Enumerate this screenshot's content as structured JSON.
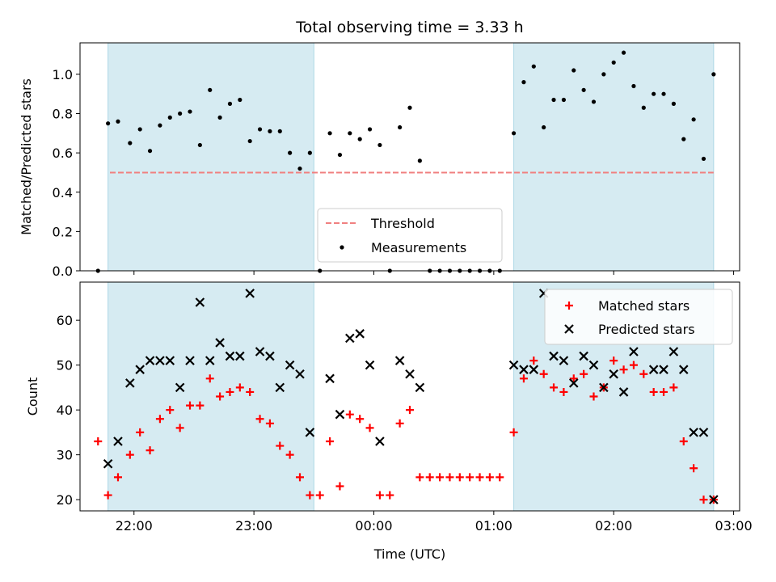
{
  "chart_data": [
    {
      "type": "scatter",
      "title": "Total observing time = 3.33 h",
      "xlabel": "",
      "ylabel": "Matched/Predicted stars",
      "xlim": [
        "21:33",
        "03:03"
      ],
      "ylim": [
        0,
        1.16
      ],
      "x_ticks": [
        "22:00",
        "23:00",
        "00:00",
        "01:00",
        "02:00",
        "03:00"
      ],
      "y_ticks": [
        "0.0",
        "0.2",
        "0.4",
        "0.6",
        "0.8",
        "1.0"
      ],
      "shaded_intervals": [
        [
          "21:47",
          "23:30"
        ],
        [
          "01:10",
          "02:50"
        ]
      ],
      "threshold": {
        "name": "Threshold",
        "value": 0.5,
        "color": "#f08080"
      },
      "legend": {
        "position": "lower-center",
        "entries": [
          "Threshold",
          "Measurements"
        ]
      },
      "series": [
        {
          "name": "Measurements",
          "color": "#000000",
          "marker": "dot",
          "x": [
            "21:42",
            "21:47",
            "21:52",
            "21:58",
            "22:03",
            "22:08",
            "22:13",
            "22:18",
            "22:23",
            "22:28",
            "22:33",
            "22:38",
            "22:43",
            "22:48",
            "22:53",
            "22:58",
            "23:03",
            "23:08",
            "23:13",
            "23:18",
            "23:23",
            "23:28",
            "23:33",
            "23:38",
            "23:43",
            "23:48",
            "23:53",
            "23:58",
            "00:03",
            "00:08",
            "00:13",
            "00:18",
            "00:23",
            "00:28",
            "00:33",
            "00:38",
            "00:43",
            "00:48",
            "00:53",
            "00:58",
            "01:03",
            "01:10",
            "01:15",
            "01:20",
            "01:25",
            "01:30",
            "01:35",
            "01:40",
            "01:45",
            "01:50",
            "01:55",
            "02:00",
            "02:05",
            "02:10",
            "02:15",
            "02:20",
            "02:25",
            "02:30",
            "02:35",
            "02:40",
            "02:45",
            "02:50"
          ],
          "y": [
            0,
            0.75,
            0.76,
            0.65,
            0.72,
            0.61,
            0.74,
            0.78,
            0.8,
            0.81,
            0.64,
            0.92,
            0.78,
            0.85,
            0.87,
            0.66,
            0.72,
            0.71,
            0.71,
            0.6,
            0.52,
            0.6,
            0,
            0.7,
            0.59,
            0.7,
            0.67,
            0.72,
            0.64,
            0,
            0.73,
            0.83,
            0.56,
            0,
            0,
            0,
            0,
            0,
            0,
            0,
            0,
            0.7,
            0.96,
            1.04,
            0.73,
            0.87,
            0.87,
            1.02,
            0.92,
            0.86,
            1.0,
            1.06,
            1.11,
            0.94,
            0.83,
            0.9,
            0.9,
            0.85,
            0.67,
            0.77,
            0.57,
            1.0
          ]
        }
      ]
    },
    {
      "type": "scatter",
      "title": "",
      "xlabel": "Time (UTC)",
      "ylabel": "Count",
      "xlim": [
        "21:33",
        "03:03"
      ],
      "ylim": [
        17.5,
        68.5
      ],
      "x_ticks": [
        "22:00",
        "23:00",
        "00:00",
        "01:00",
        "02:00",
        "03:00"
      ],
      "y_ticks": [
        "20",
        "30",
        "40",
        "50",
        "60"
      ],
      "shaded_intervals": [
        [
          "21:47",
          "23:30"
        ],
        [
          "01:10",
          "02:50"
        ]
      ],
      "legend": {
        "position": "upper-right",
        "entries": [
          "Matched stars",
          "Predicted stars"
        ]
      },
      "series": [
        {
          "name": "Matched stars",
          "color": "#ff0000",
          "marker": "plus",
          "x": [
            "21:42",
            "21:47",
            "21:52",
            "21:58",
            "22:03",
            "22:08",
            "22:13",
            "22:18",
            "22:23",
            "22:28",
            "22:33",
            "22:38",
            "22:43",
            "22:48",
            "22:53",
            "22:58",
            "23:03",
            "23:08",
            "23:13",
            "23:18",
            "23:23",
            "23:28",
            "23:33",
            "23:38",
            "23:43",
            "23:48",
            "23:53",
            "23:58",
            "00:03",
            "00:08",
            "00:13",
            "00:18",
            "00:23",
            "00:28",
            "00:33",
            "00:38",
            "00:43",
            "00:48",
            "00:53",
            "00:58",
            "01:03",
            "01:10",
            "01:15",
            "01:20",
            "01:25",
            "01:30",
            "01:35",
            "01:40",
            "01:45",
            "01:50",
            "01:55",
            "02:00",
            "02:05",
            "02:10",
            "02:15",
            "02:20",
            "02:25",
            "02:30",
            "02:35",
            "02:40",
            "02:45",
            "02:50"
          ],
          "y": [
            33,
            21,
            25,
            30,
            35,
            31,
            38,
            40,
            36,
            41,
            41,
            47,
            43,
            44,
            45,
            44,
            38,
            37,
            32,
            30,
            25,
            21,
            21,
            33,
            23,
            39,
            38,
            36,
            21,
            21,
            37,
            40,
            25,
            25,
            25,
            25,
            25,
            25,
            25,
            25,
            25,
            35,
            47,
            51,
            48,
            45,
            44,
            47,
            48,
            43,
            45,
            51,
            49,
            50,
            48,
            44,
            44,
            45,
            33,
            27,
            20,
            20
          ]
        },
        {
          "name": "Predicted stars",
          "color": "#000000",
          "marker": "x",
          "x": [
            "21:47",
            "21:52",
            "21:58",
            "22:03",
            "22:08",
            "22:13",
            "22:18",
            "22:23",
            "22:28",
            "22:33",
            "22:38",
            "22:43",
            "22:48",
            "22:53",
            "22:58",
            "23:03",
            "23:08",
            "23:13",
            "23:18",
            "23:23",
            "23:28",
            "23:38",
            "23:43",
            "23:48",
            "23:53",
            "23:58",
            "00:03",
            "00:13",
            "00:18",
            "00:23",
            "01:10",
            "01:15",
            "01:20",
            "01:25",
            "01:30",
            "01:35",
            "01:40",
            "01:45",
            "01:50",
            "01:55",
            "02:00",
            "02:05",
            "02:10",
            "02:20",
            "02:25",
            "02:30",
            "02:35",
            "02:40",
            "02:45",
            "02:50"
          ],
          "y": [
            28,
            33,
            46,
            49,
            51,
            51,
            51,
            45,
            51,
            64,
            51,
            55,
            52,
            52,
            66,
            53,
            52,
            45,
            50,
            48,
            35,
            47,
            39,
            56,
            57,
            50,
            33,
            51,
            48,
            45,
            50,
            49,
            49,
            66,
            52,
            51,
            46,
            52,
            50,
            45,
            48,
            44,
            53,
            49,
            49,
            53,
            49,
            35,
            35,
            20
          ]
        }
      ]
    }
  ]
}
